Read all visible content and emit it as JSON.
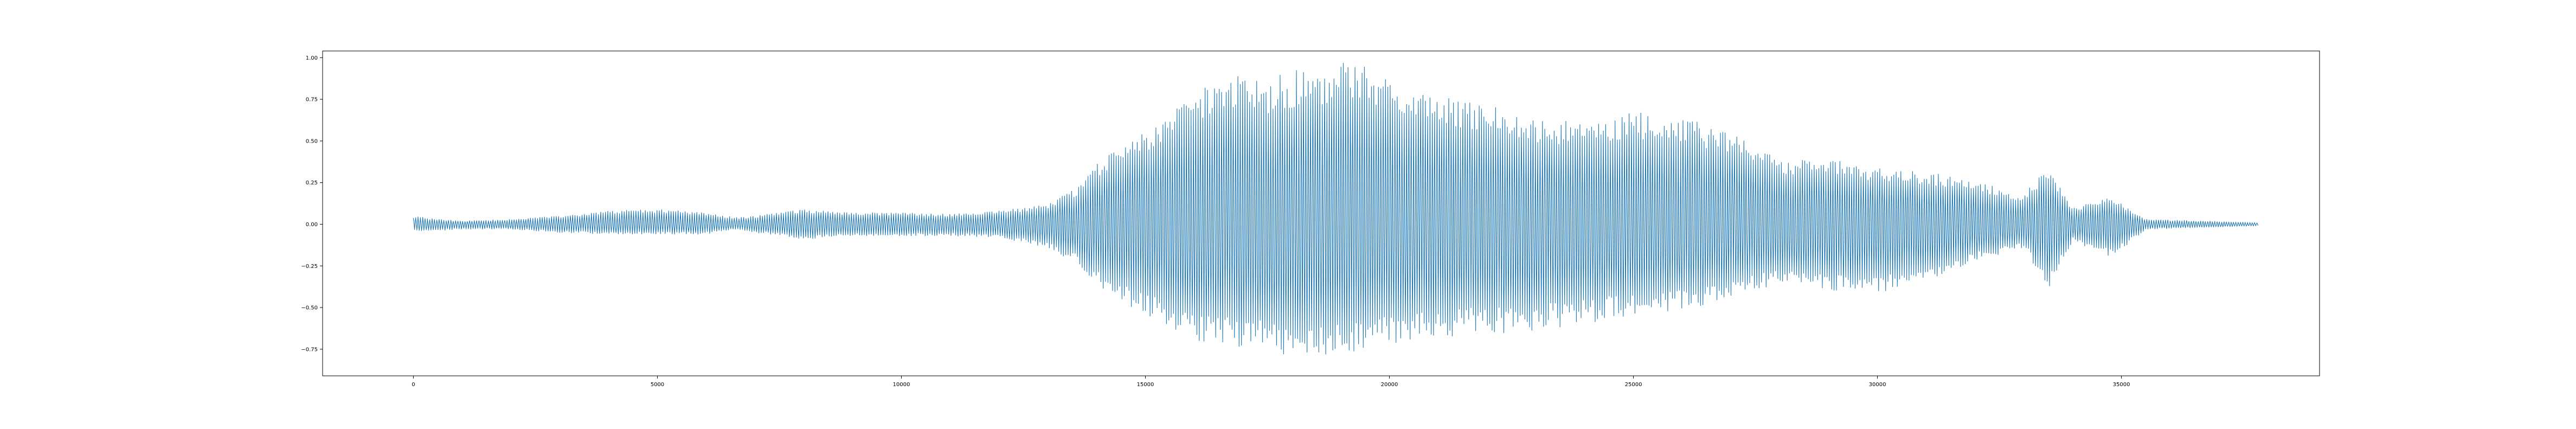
{
  "chart_data": {
    "type": "line",
    "title": "",
    "xlabel": "",
    "ylabel": "",
    "xlim": [
      -1860,
      39060
    ],
    "ylim": [
      -0.91,
      1.04
    ],
    "x_ticks": [
      0,
      5000,
      10000,
      15000,
      20000,
      25000,
      30000,
      35000
    ],
    "x_tick_labels": [
      "0",
      "5000",
      "10000",
      "15000",
      "20000",
      "25000",
      "30000",
      "35000"
    ],
    "y_ticks": [
      -0.75,
      -0.5,
      -0.25,
      0.0,
      0.25,
      0.5,
      0.75,
      1.0
    ],
    "y_tick_labels": [
      "−0.75",
      "−0.50",
      "−0.25",
      "0.00",
      "0.25",
      "0.50",
      "0.75",
      "1.00"
    ],
    "grid": false,
    "series": [
      {
        "color": "#1f77b4",
        "x_start": 0,
        "x_end": 37800,
        "envelope": [
          [
            0,
            0.05,
            -0.04
          ],
          [
            500,
            0.03,
            -0.04
          ],
          [
            1000,
            0.02,
            -0.03
          ],
          [
            2000,
            0.03,
            -0.03
          ],
          [
            3000,
            0.05,
            -0.05
          ],
          [
            4000,
            0.08,
            -0.06
          ],
          [
            5000,
            0.09,
            -0.06
          ],
          [
            6000,
            0.07,
            -0.06
          ],
          [
            6600,
            0.04,
            -0.03
          ],
          [
            7000,
            0.05,
            -0.05
          ],
          [
            8000,
            0.09,
            -0.09
          ],
          [
            9000,
            0.07,
            -0.07
          ],
          [
            10000,
            0.07,
            -0.07
          ],
          [
            11000,
            0.06,
            -0.07
          ],
          [
            12000,
            0.08,
            -0.08
          ],
          [
            13000,
            0.12,
            -0.14
          ],
          [
            13600,
            0.22,
            -0.24
          ],
          [
            14000,
            0.36,
            -0.36
          ],
          [
            14400,
            0.47,
            -0.46
          ],
          [
            15000,
            0.55,
            -0.55
          ],
          [
            16000,
            0.8,
            -0.7
          ],
          [
            16500,
            0.88,
            -0.73
          ],
          [
            17000,
            0.9,
            -0.74
          ],
          [
            17500,
            0.88,
            -0.78
          ],
          [
            18000,
            0.92,
            -0.78
          ],
          [
            18500,
            0.94,
            -0.8
          ],
          [
            19000,
            0.97,
            -0.78
          ],
          [
            19500,
            0.96,
            -0.76
          ],
          [
            20000,
            0.92,
            -0.72
          ],
          [
            21000,
            0.78,
            -0.68
          ],
          [
            22000,
            0.72,
            -0.66
          ],
          [
            23000,
            0.65,
            -0.64
          ],
          [
            24000,
            0.62,
            -0.6
          ],
          [
            25000,
            0.68,
            -0.55
          ],
          [
            26000,
            0.64,
            -0.52
          ],
          [
            27000,
            0.56,
            -0.44
          ],
          [
            28000,
            0.38,
            -0.36
          ],
          [
            29000,
            0.4,
            -0.4
          ],
          [
            30000,
            0.34,
            -0.42
          ],
          [
            31000,
            0.32,
            -0.34
          ],
          [
            32000,
            0.26,
            -0.22
          ],
          [
            33000,
            0.18,
            -0.14
          ],
          [
            33500,
            0.36,
            -0.4
          ],
          [
            34000,
            0.1,
            -0.1
          ],
          [
            34800,
            0.16,
            -0.2
          ],
          [
            35500,
            0.03,
            -0.03
          ],
          [
            37800,
            0.01,
            -0.01
          ]
        ]
      }
    ]
  }
}
